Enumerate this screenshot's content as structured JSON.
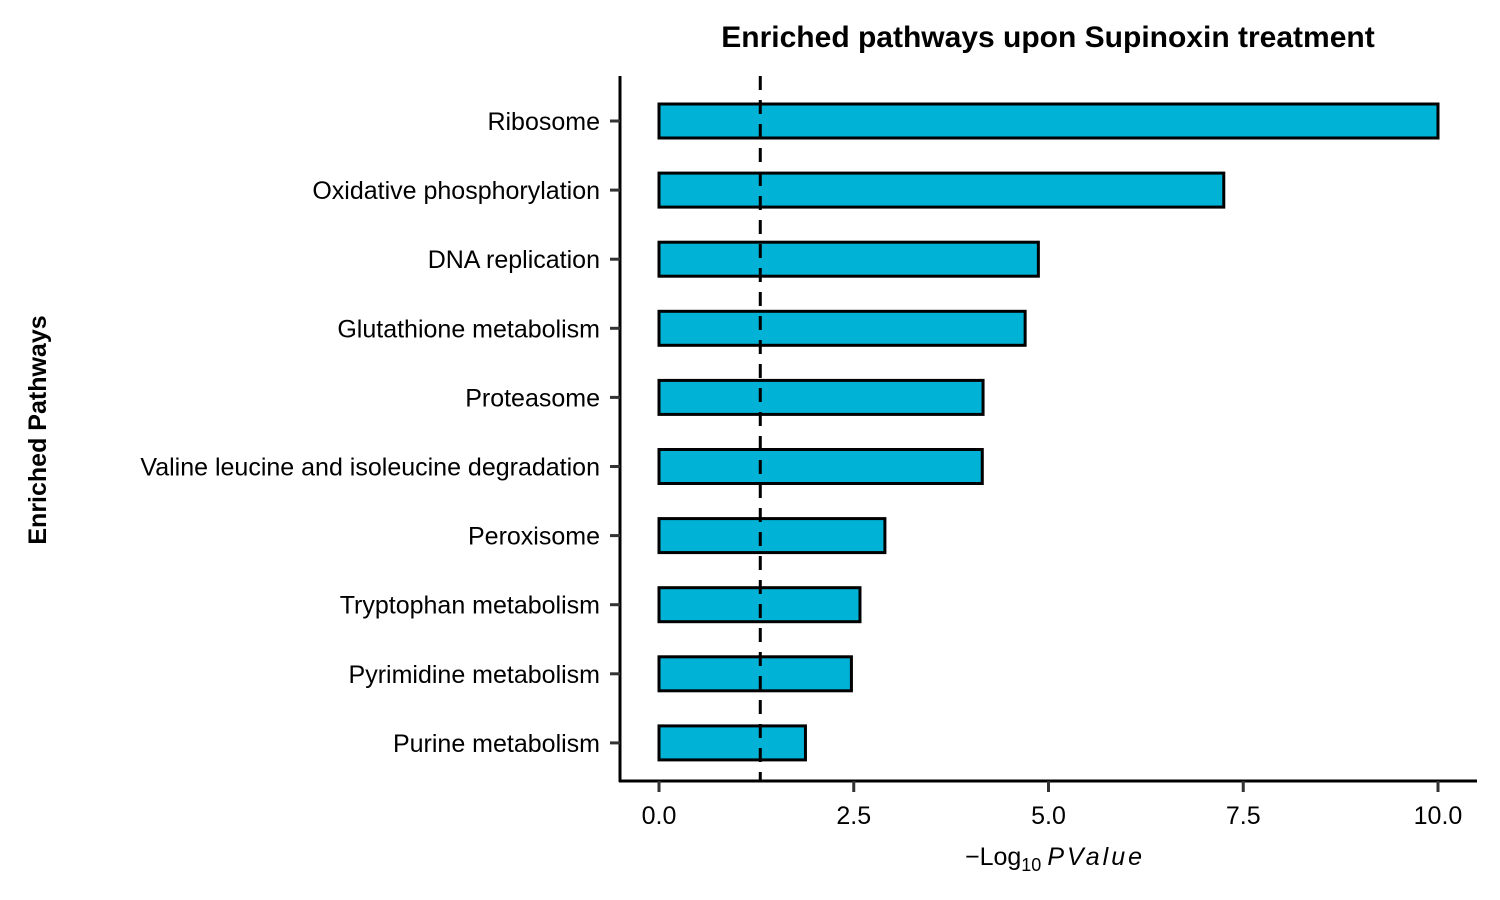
{
  "chart_data": {
    "type": "bar",
    "orientation": "horizontal",
    "title": "Enriched pathways upon Supinoxin treatment",
    "ylabel": "Enriched Pathways",
    "xlabel": {
      "prefix": "−Log",
      "subscript": "10",
      "suffix": "PValue"
    },
    "categories": [
      "Ribosome",
      "Oxidative phosphorylation",
      "DNA replication",
      "Glutathione metabolism",
      "Proteasome",
      "Valine leucine and isoleucine degradation",
      "Peroxisome",
      "Tryptophan metabolism",
      "Pyrimidine metabolism",
      "Purine metabolism"
    ],
    "values": [
      10.0,
      7.25,
      4.87,
      4.7,
      4.16,
      4.15,
      2.9,
      2.58,
      2.47,
      1.88
    ],
    "xlim": [
      -0.25,
      10.5
    ],
    "xticks": [
      "0.0",
      "2.5",
      "5.0",
      "7.5",
      "10.0"
    ],
    "reference_line": 1.3,
    "bar_color": "#00B2D6",
    "bar_edge_color": "#000000",
    "grid": false,
    "legend": false
  }
}
